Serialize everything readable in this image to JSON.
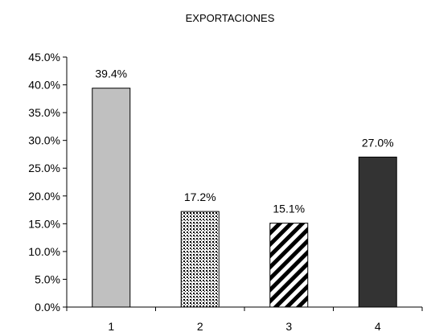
{
  "chart_data": {
    "type": "bar",
    "title": "EXPORTACIONES",
    "xlabel": "",
    "ylabel": "",
    "categories": [
      "1",
      "2",
      "3",
      "4"
    ],
    "values": [
      39.4,
      17.2,
      15.1,
      27.0
    ],
    "data_labels": [
      "39.4%",
      "17.2%",
      "15.1%",
      "27.0%"
    ],
    "ylim": [
      0,
      45
    ],
    "y_ticks": [
      "0.0%",
      "5.0%",
      "10.0%",
      "15.0%",
      "20.0%",
      "25.0%",
      "30.0%",
      "35.0%",
      "40.0%",
      "45.0%"
    ],
    "grid": false,
    "legend": "none",
    "bar_fills": [
      "solid-light-gray",
      "dotted",
      "diagonal-stripes",
      "solid-dark-gray"
    ],
    "colors": {
      "bar1": "#c0c0c0",
      "bar2_dots": "#000000",
      "bar3_stripes": "#000000",
      "bar4": "#333333",
      "axis": "#000000"
    }
  }
}
